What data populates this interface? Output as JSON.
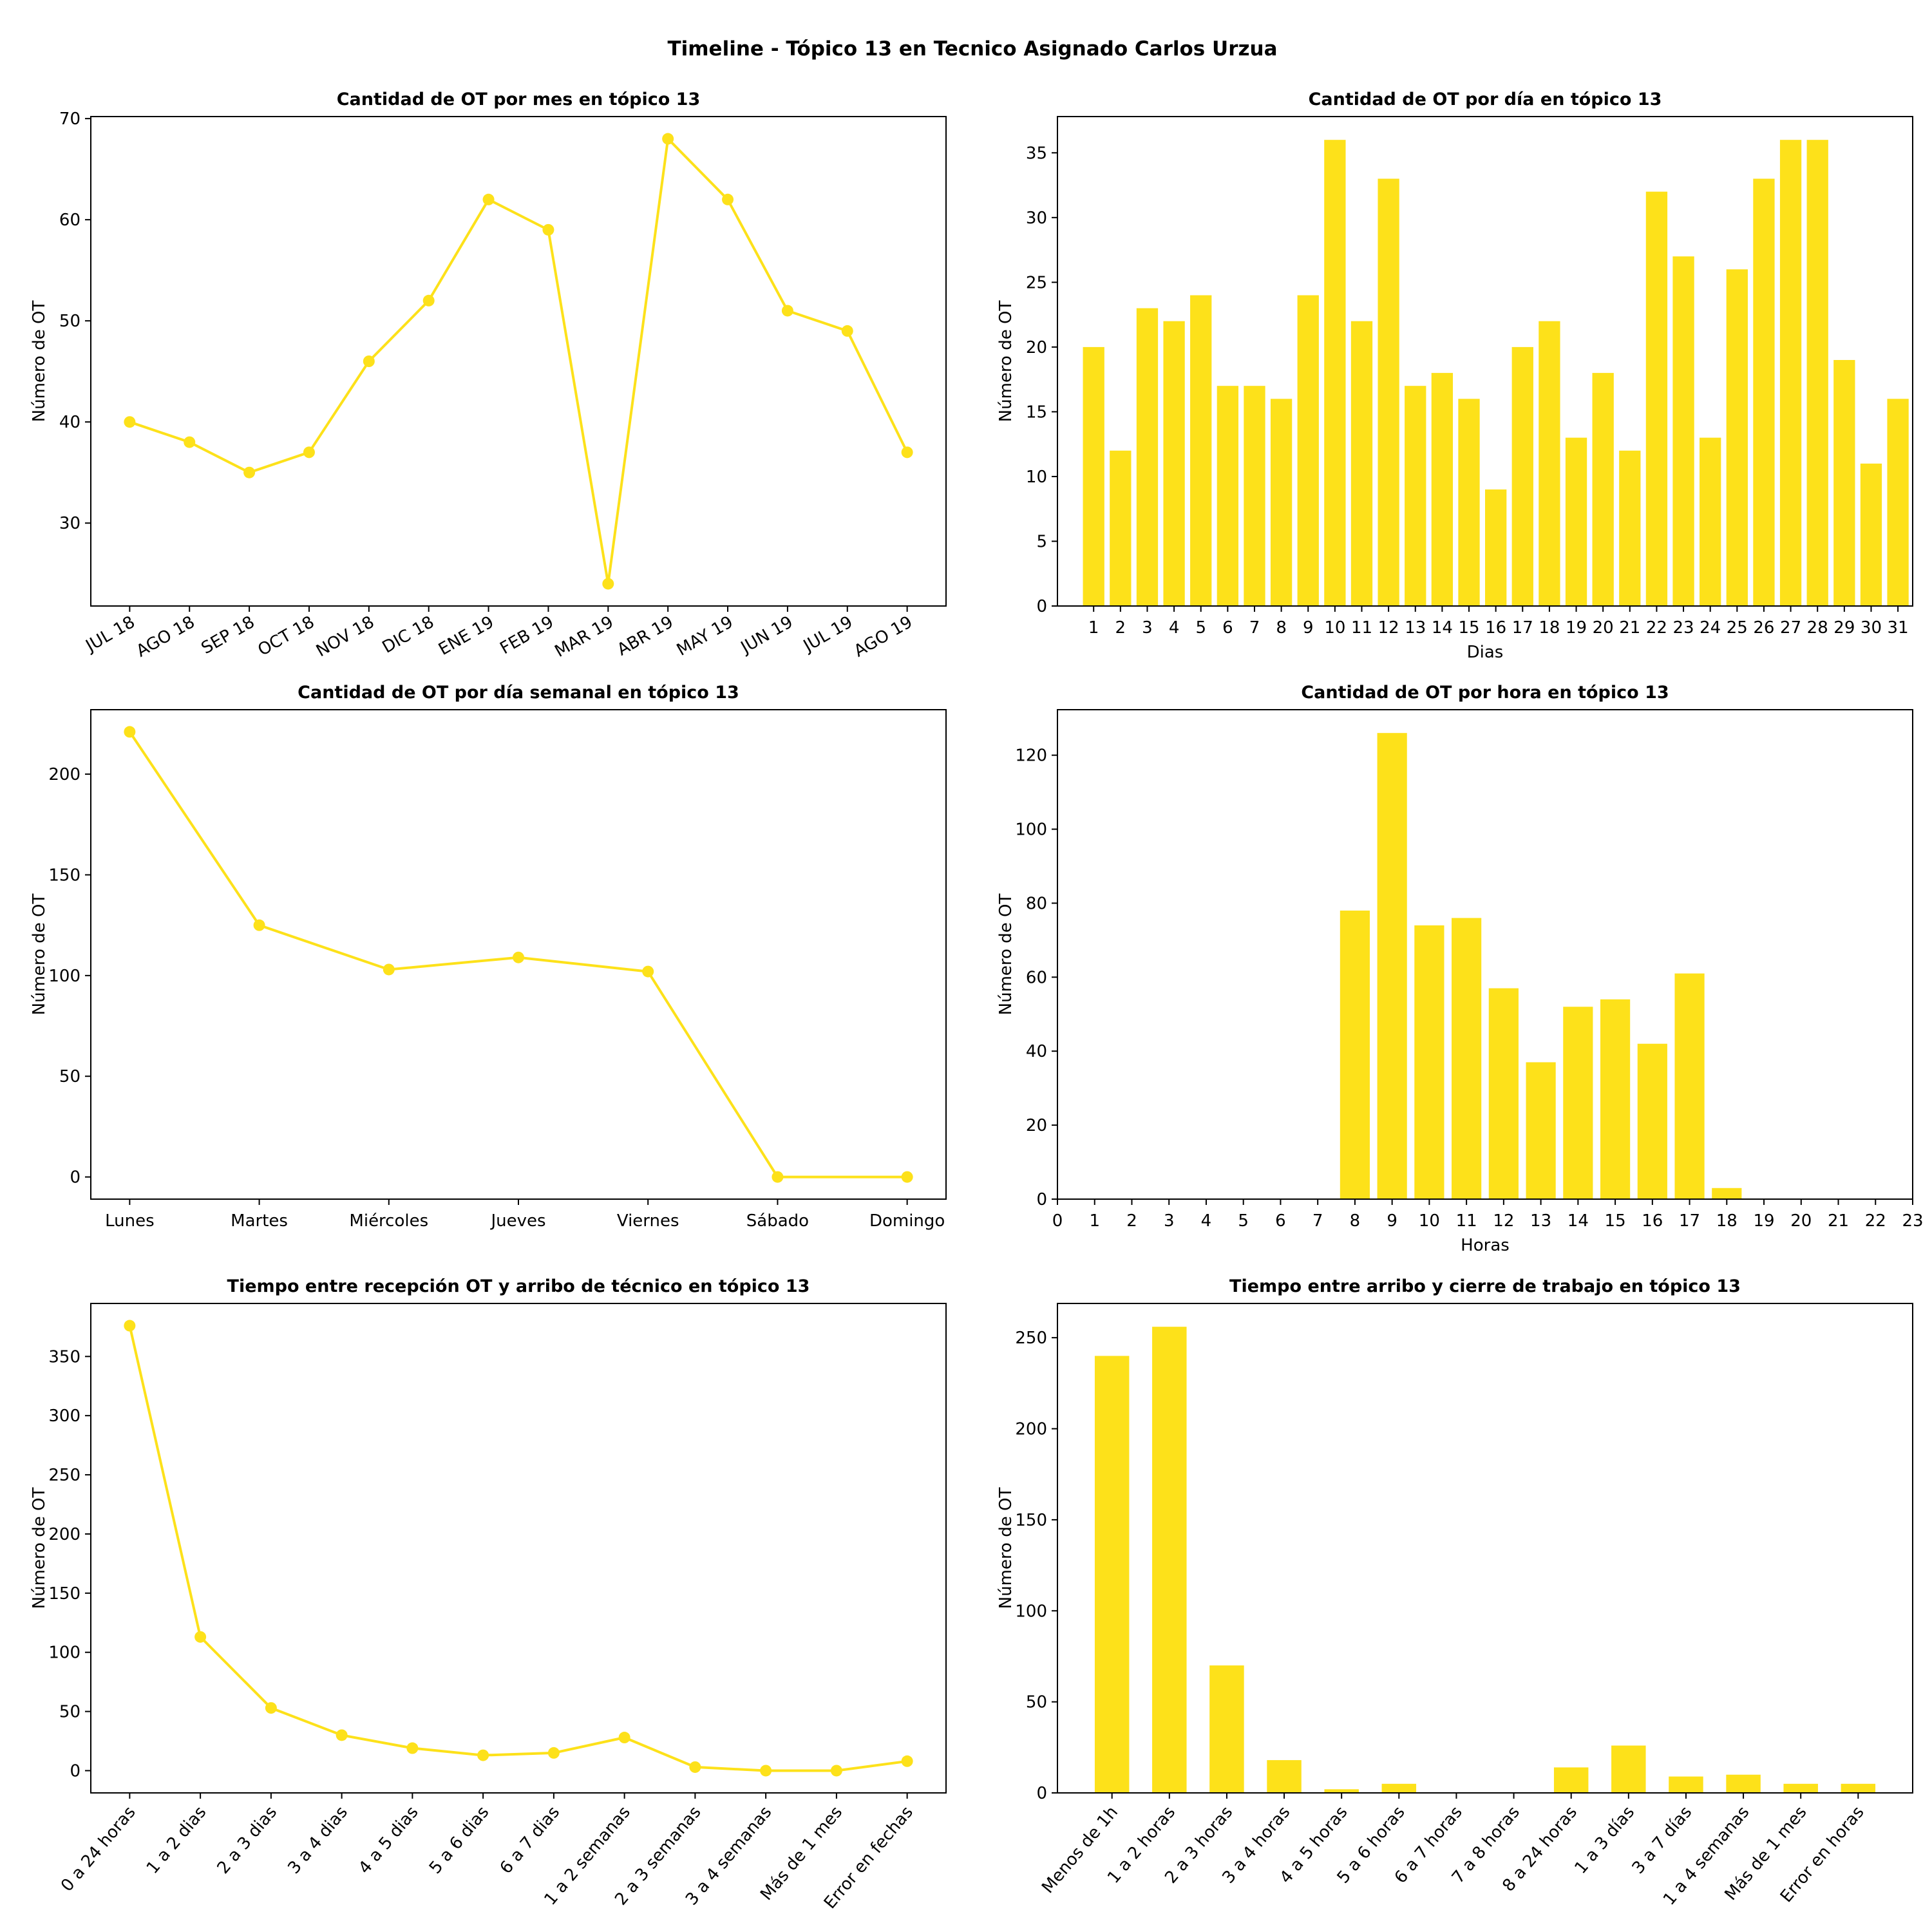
{
  "title": "Timeline - Tópico 13 en Tecnico Asignado Carlos Urzua",
  "colors": {
    "series": "#FDE11A"
  },
  "chart_data": [
    {
      "type": "line",
      "title": "Cantidad de OT por mes en tópico 13",
      "xlabel": "",
      "ylabel": "Número de OT",
      "categories": [
        "JUL 18",
        "AGO 18",
        "SEP 18",
        "OCT 18",
        "NOV 18",
        "DIC 18",
        "ENE 19",
        "FEB 19",
        "MAR 19",
        "ABR 19",
        "MAY 19",
        "JUN 19",
        "JUL 19",
        "AGO 19"
      ],
      "values": [
        40,
        38,
        35,
        37,
        46,
        52,
        62,
        59,
        24,
        68,
        62,
        51,
        49,
        37
      ],
      "ylim": [
        21.8,
        70.2
      ],
      "yticks": [
        30,
        40,
        50,
        60,
        70
      ],
      "xtick_rotation": 30,
      "grid": false
    },
    {
      "type": "bar",
      "title": "Cantidad de OT por día en tópico 13",
      "xlabel": "Dias",
      "ylabel": "Número de OT",
      "categories": [
        "1",
        "2",
        "3",
        "4",
        "5",
        "6",
        "7",
        "8",
        "9",
        "10",
        "11",
        "12",
        "13",
        "14",
        "15",
        "16",
        "17",
        "18",
        "19",
        "20",
        "21",
        "22",
        "23",
        "24",
        "25",
        "26",
        "27",
        "28",
        "29",
        "30",
        "31"
      ],
      "values": [
        20,
        12,
        23,
        22,
        24,
        17,
        17,
        16,
        24,
        36,
        22,
        33,
        17,
        18,
        16,
        9,
        20,
        22,
        13,
        18,
        12,
        32,
        27,
        13,
        26,
        33,
        36,
        36,
        19,
        11,
        16
      ],
      "ylim": [
        0,
        37.8
      ],
      "yticks": [
        0,
        5,
        10,
        15,
        20,
        25,
        30,
        35
      ],
      "grid": false
    },
    {
      "type": "line",
      "title": "Cantidad de OT por día semanal en tópico 13",
      "xlabel": "",
      "ylabel": "Número de OT",
      "categories": [
        "Lunes",
        "Martes",
        "Miércoles",
        "Jueves",
        "Viernes",
        "Sábado",
        "Domingo"
      ],
      "values": [
        221,
        125,
        103,
        109,
        102,
        0,
        0
      ],
      "ylim": [
        -11,
        232
      ],
      "yticks": [
        0,
        50,
        100,
        150,
        200
      ],
      "grid": false
    },
    {
      "type": "bar",
      "title": "Cantidad de OT por hora en tópico 13",
      "xlabel": "Horas",
      "ylabel": "Número de OT",
      "categories": [
        "0",
        "1",
        "2",
        "3",
        "4",
        "5",
        "6",
        "7",
        "8",
        "9",
        "10",
        "11",
        "12",
        "13",
        "14",
        "15",
        "16",
        "17",
        "18",
        "19",
        "20",
        "21",
        "22",
        "23"
      ],
      "values": [
        0,
        0,
        0,
        0,
        0,
        0,
        0,
        0,
        78,
        126,
        74,
        76,
        57,
        37,
        52,
        54,
        42,
        61,
        3,
        0,
        0,
        0,
        0,
        0
      ],
      "ylim": [
        0,
        132.3
      ],
      "yticks": [
        0,
        20,
        40,
        60,
        80,
        100,
        120
      ],
      "grid": false
    },
    {
      "type": "line",
      "title": "Tiempo entre recepción OT y arribo de técnico en tópico 13",
      "xlabel": "",
      "ylabel": "Número de OT",
      "categories": [
        "0 a 24 horas",
        "1 a 2 dias",
        "2 a 3 dias",
        "3 a 4 dias",
        "4 a 5 dias",
        "5 a 6 dias",
        "6 a 7 dias",
        "1 a 2 semanas",
        "2 a 3 semanas",
        "3 a 4 semanas",
        "Más de 1 mes",
        "Error en fechas"
      ],
      "values": [
        376,
        113,
        53,
        30,
        19,
        13,
        15,
        28,
        3,
        0,
        0,
        8
      ],
      "ylim": [
        -18.8,
        394.8
      ],
      "yticks": [
        0,
        50,
        100,
        150,
        200,
        250,
        300,
        350
      ],
      "xtick_rotation": 50,
      "grid": false
    },
    {
      "type": "bar",
      "title": "Tiempo entre arribo y cierre de trabajo en tópico 13",
      "xlabel": "",
      "ylabel": "Número de OT",
      "categories": [
        "Menos de 1h",
        "1 a 2 horas",
        "2 a 3 horas",
        "3 a 4 horas",
        "4 a 5 horas",
        "5 a 6 horas",
        "6 a 7 horas",
        "7 a 8 horas",
        "8 a 24 horas",
        "1 a 3 días",
        "3 a 7 días",
        "1 a 4 semanas",
        "Más de 1 mes",
        "Error en horas"
      ],
      "values": [
        240,
        256,
        70,
        18,
        2,
        5,
        0,
        0,
        14,
        26,
        9,
        10,
        5,
        5
      ],
      "ylim": [
        0,
        268.8
      ],
      "yticks": [
        0,
        50,
        100,
        150,
        200,
        250
      ],
      "xtick_rotation": 50,
      "grid": false
    }
  ]
}
